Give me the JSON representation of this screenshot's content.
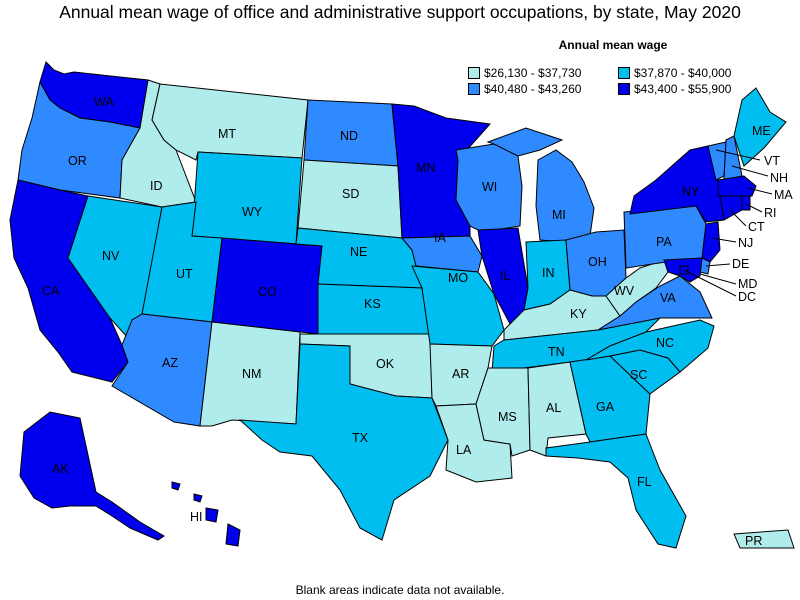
{
  "title": "Annual mean wage of office and administrative support occupations, by state, May 2020",
  "legend": {
    "title": "Annual mean wage",
    "items": [
      {
        "label": "$26,130 - $37,730",
        "color": "#b0ecec"
      },
      {
        "label": "$37,870 - $40,000",
        "color": "#00bff0"
      },
      {
        "label": "$40,480 - $43,260",
        "color": "#2f8aff"
      },
      {
        "label": "$43,400 - $55,900",
        "color": "#0000ee"
      }
    ]
  },
  "footnote": "Blank areas indicate data not available.",
  "states": [
    {
      "abbr": "WA",
      "bin": 3
    },
    {
      "abbr": "OR",
      "bin": 2
    },
    {
      "abbr": "CA",
      "bin": 3
    },
    {
      "abbr": "NV",
      "bin": 1
    },
    {
      "abbr": "ID",
      "bin": 0
    },
    {
      "abbr": "MT",
      "bin": 0
    },
    {
      "abbr": "WY",
      "bin": 1
    },
    {
      "abbr": "UT",
      "bin": 1
    },
    {
      "abbr": "AZ",
      "bin": 2
    },
    {
      "abbr": "CO",
      "bin": 3
    },
    {
      "abbr": "NM",
      "bin": 0
    },
    {
      "abbr": "ND",
      "bin": 2
    },
    {
      "abbr": "SD",
      "bin": 0
    },
    {
      "abbr": "NE",
      "bin": 1
    },
    {
      "abbr": "KS",
      "bin": 1
    },
    {
      "abbr": "OK",
      "bin": 0
    },
    {
      "abbr": "TX",
      "bin": 1
    },
    {
      "abbr": "MN",
      "bin": 3
    },
    {
      "abbr": "IA",
      "bin": 2
    },
    {
      "abbr": "MO",
      "bin": 1
    },
    {
      "abbr": "AR",
      "bin": 0
    },
    {
      "abbr": "LA",
      "bin": 0
    },
    {
      "abbr": "WI",
      "bin": 2
    },
    {
      "abbr": "IL",
      "bin": 3
    },
    {
      "abbr": "MI",
      "bin": 2
    },
    {
      "abbr": "IN",
      "bin": 1
    },
    {
      "abbr": "OH",
      "bin": 2
    },
    {
      "abbr": "KY",
      "bin": 0
    },
    {
      "abbr": "TN",
      "bin": 1
    },
    {
      "abbr": "MS",
      "bin": 0
    },
    {
      "abbr": "AL",
      "bin": 0
    },
    {
      "abbr": "GA",
      "bin": 1
    },
    {
      "abbr": "FL",
      "bin": 1
    },
    {
      "abbr": "SC",
      "bin": 1
    },
    {
      "abbr": "NC",
      "bin": 1
    },
    {
      "abbr": "VA",
      "bin": 2
    },
    {
      "abbr": "WV",
      "bin": 0
    },
    {
      "abbr": "PA",
      "bin": 2
    },
    {
      "abbr": "NY",
      "bin": 3
    },
    {
      "abbr": "VT",
      "bin": 2
    },
    {
      "abbr": "NH",
      "bin": 2
    },
    {
      "abbr": "ME",
      "bin": 1
    },
    {
      "abbr": "MA",
      "bin": 3
    },
    {
      "abbr": "RI",
      "bin": 3
    },
    {
      "abbr": "CT",
      "bin": 3
    },
    {
      "abbr": "NJ",
      "bin": 3
    },
    {
      "abbr": "DE",
      "bin": 2
    },
    {
      "abbr": "MD",
      "bin": 3
    },
    {
      "abbr": "DC",
      "bin": 3
    },
    {
      "abbr": "AK",
      "bin": 3
    },
    {
      "abbr": "HI",
      "bin": 3
    },
    {
      "abbr": "PR",
      "bin": 0
    }
  ]
}
